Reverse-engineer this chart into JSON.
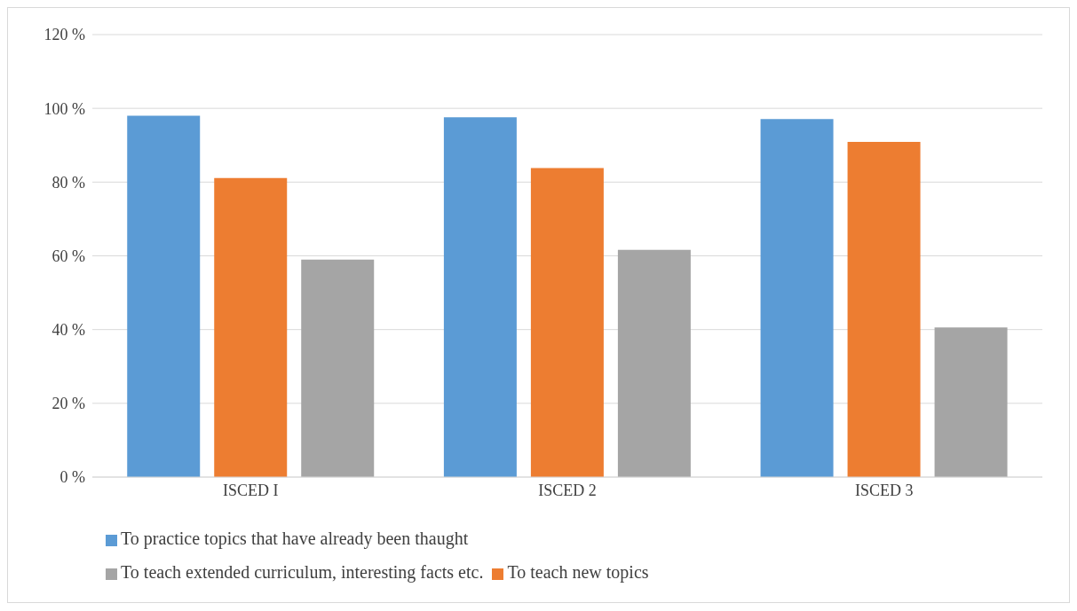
{
  "chart_data": {
    "type": "bar",
    "categories": [
      "ISCED I",
      "ISCED 2",
      "ISCED 3"
    ],
    "series": [
      {
        "name": "To practice topics that have already been thaught",
        "color": "#5b9bd5",
        "values": [
          98,
          97.6,
          97.1
        ]
      },
      {
        "name": "To teach new topics",
        "color": "#ed7d31",
        "values": [
          81.1,
          83.8,
          90.9
        ]
      },
      {
        "name": "To teach extended curriculum, interesting facts etc.",
        "color": "#a5a5a5",
        "values": [
          59,
          61.6,
          40.6
        ]
      }
    ],
    "ylim": [
      0,
      120
    ],
    "yticks": [
      {
        "value": 0,
        "label": "0 %"
      },
      {
        "value": 20,
        "label": "20 %"
      },
      {
        "value": 40,
        "label": "40 %"
      },
      {
        "value": 60,
        "label": "60 %"
      },
      {
        "value": 80,
        "label": "80 %"
      },
      {
        "value": 100,
        "label": "100 %"
      },
      {
        "value": 120,
        "label": "120 %"
      }
    ],
    "grid": "y",
    "legend": "bottom"
  }
}
